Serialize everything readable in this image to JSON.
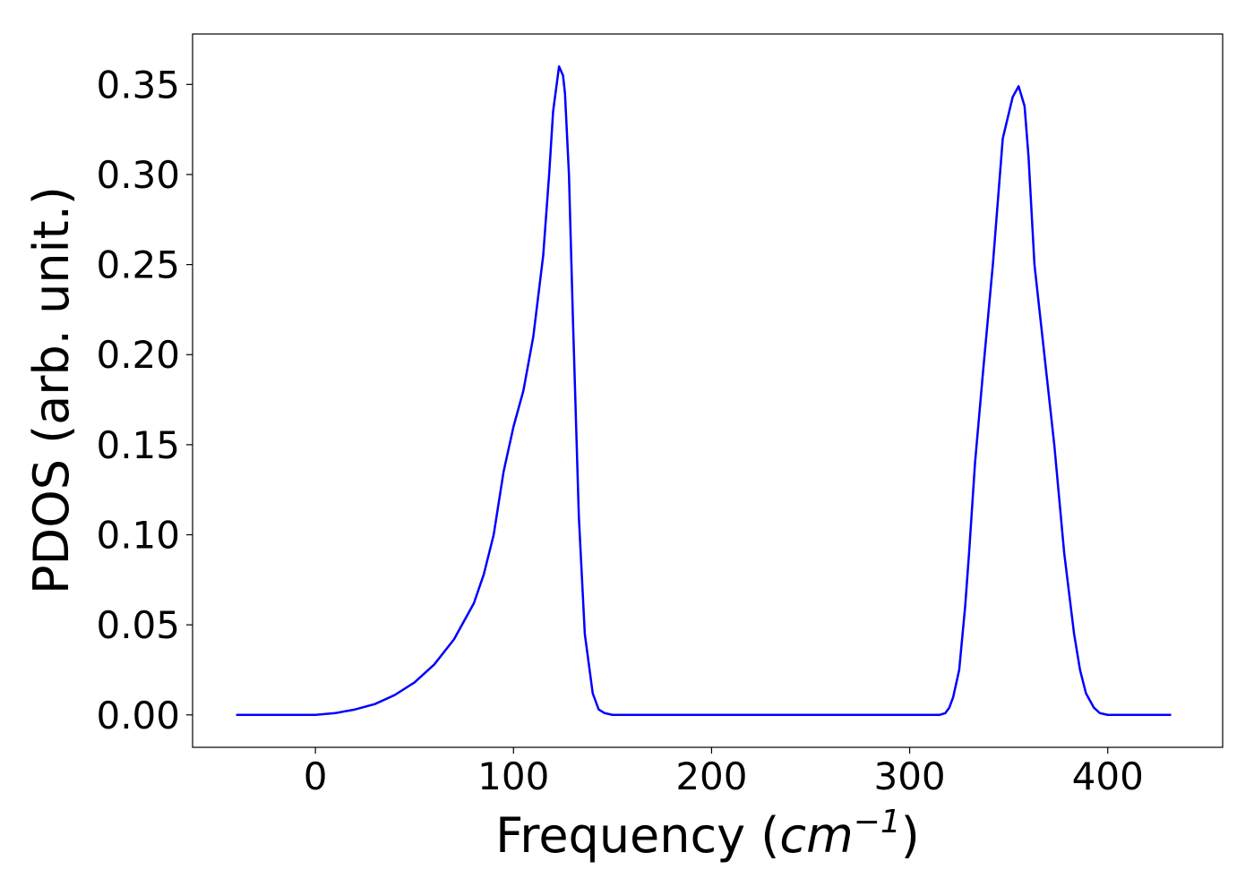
{
  "chart_data": {
    "type": "line",
    "xlabel_text": "Frequency (",
    "xlabel_math": "cm",
    "xlabel_exp": "−1",
    "xlabel_close": ")",
    "ylabel": "PDOS (arb. unit.)",
    "xlim": [
      -62,
      458
    ],
    "ylim": [
      -0.018,
      0.378
    ],
    "xticks": [
      0,
      100,
      200,
      300,
      400
    ],
    "xtick_labels": [
      "0",
      "100",
      "200",
      "300",
      "400"
    ],
    "yticks": [
      0.0,
      0.05,
      0.1,
      0.15,
      0.2,
      0.25,
      0.3,
      0.35
    ],
    "ytick_labels": [
      "0.00",
      "0.05",
      "0.10",
      "0.15",
      "0.20",
      "0.25",
      "0.30",
      "0.35"
    ],
    "grid": false,
    "line_color": "#0000ff",
    "series": [
      {
        "x": [
          -40,
          0,
          10,
          20,
          30,
          40,
          50,
          60,
          70,
          80,
          85,
          90,
          95,
          100,
          105,
          110,
          115,
          118,
          120,
          123,
          125,
          126,
          128,
          130,
          133,
          136,
          140,
          143,
          146,
          150,
          160,
          200,
          250,
          300,
          315,
          318,
          320,
          322,
          325,
          328,
          330,
          333,
          337,
          342,
          347,
          352,
          355,
          358,
          360,
          363,
          368,
          373,
          378,
          383,
          386,
          389,
          393,
          396,
          400,
          405,
          415,
          432
        ],
        "y": [
          0.0,
          0.0,
          0.001,
          0.003,
          0.006,
          0.011,
          0.018,
          0.028,
          0.042,
          0.062,
          0.078,
          0.1,
          0.135,
          0.16,
          0.18,
          0.21,
          0.255,
          0.3,
          0.335,
          0.36,
          0.355,
          0.345,
          0.3,
          0.22,
          0.11,
          0.045,
          0.012,
          0.003,
          0.001,
          0.0,
          0.0,
          0.0,
          0.0,
          0.0,
          0.0,
          0.001,
          0.004,
          0.01,
          0.025,
          0.06,
          0.09,
          0.14,
          0.19,
          0.25,
          0.32,
          0.343,
          0.349,
          0.338,
          0.31,
          0.25,
          0.2,
          0.15,
          0.09,
          0.045,
          0.025,
          0.012,
          0.004,
          0.001,
          0.0,
          0.0,
          0.0,
          0.0
        ]
      }
    ]
  }
}
